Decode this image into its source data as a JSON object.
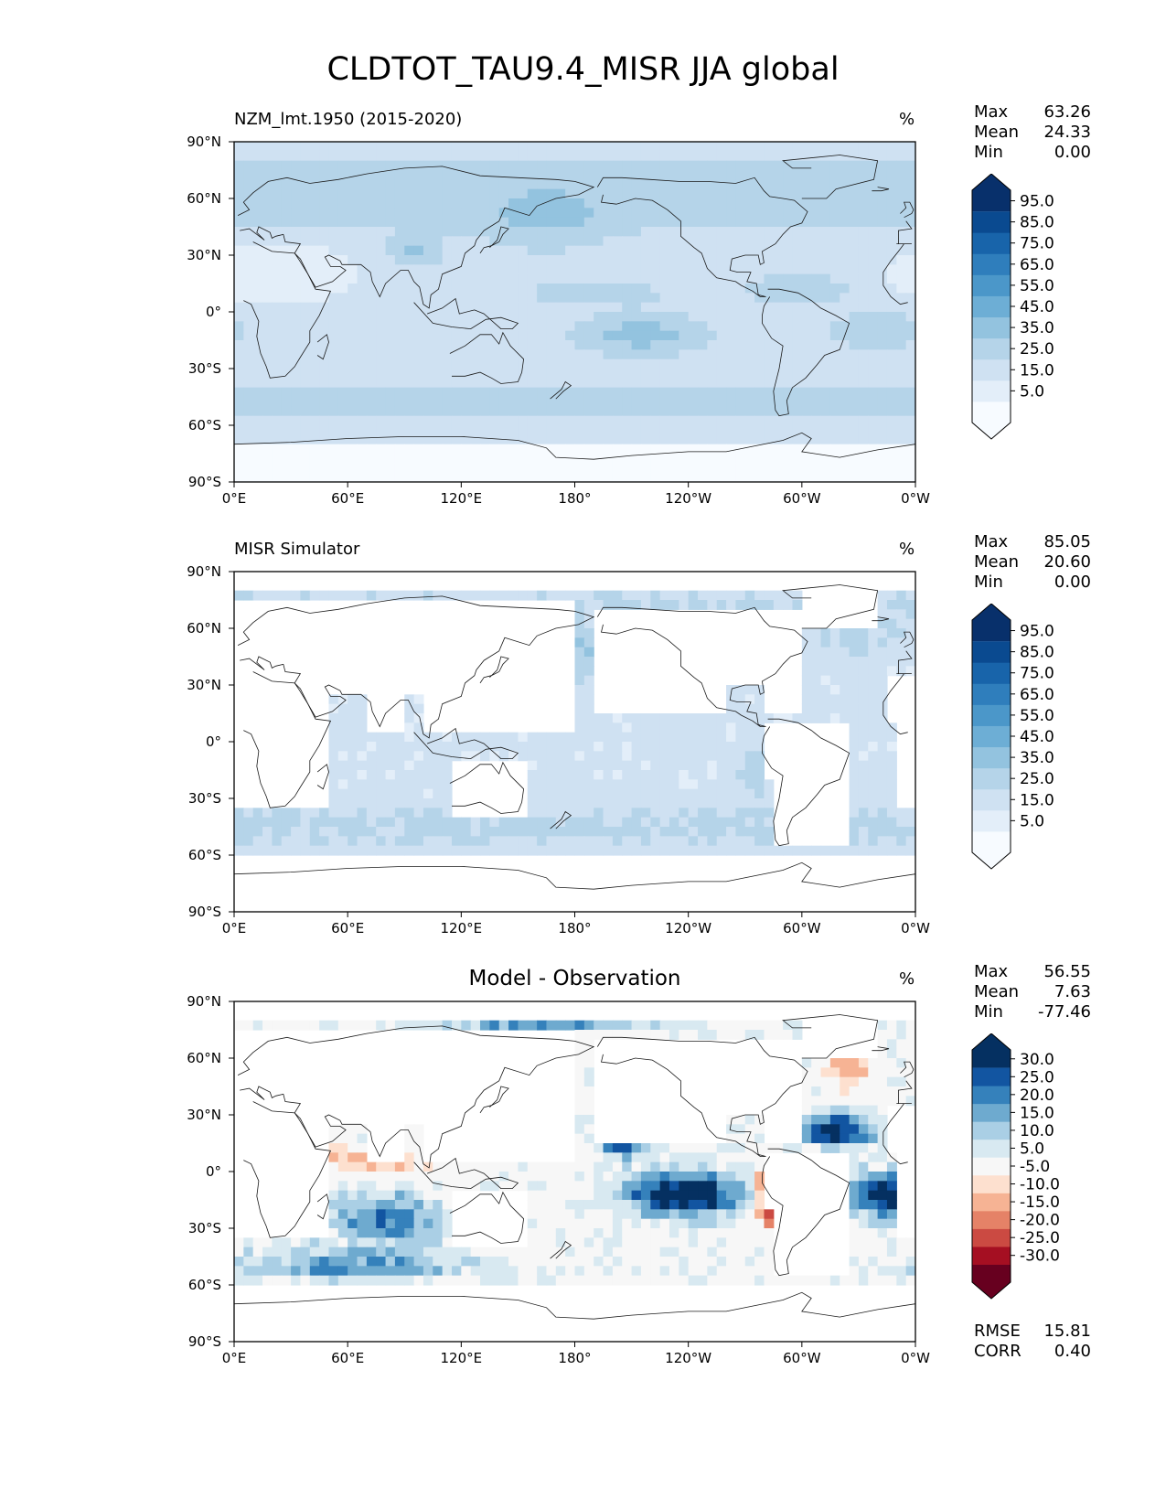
{
  "title": "CLDTOT_TAU9.4_MISR JJA global",
  "colors": {
    "blues": [
      "#f7fbff",
      "#e3eef9",
      "#cfe1f2",
      "#b5d4e9",
      "#93c3df",
      "#6daed5",
      "#4b97c9",
      "#2f7ebc",
      "#1864aa",
      "#0a4a90",
      "#08306b"
    ],
    "diverging": [
      "#67001f",
      "#a50f22",
      "#cb4a42",
      "#e58267",
      "#f6b394",
      "#fde0cf",
      "#f7f7f7",
      "#d8e9f1",
      "#aacfe5",
      "#6eaacf",
      "#3581bb",
      "#1255a1",
      "#053061"
    ]
  },
  "chart_data": [
    {
      "type": "heatmap",
      "title": "NZM_lmt.1950 (2015-2020)",
      "units": "%",
      "stats": [
        {
          "label": "Max",
          "value": "63.26"
        },
        {
          "label": "Mean",
          "value": "24.33"
        },
        {
          "label": "Min",
          "value": "0.00"
        }
      ],
      "x_ticks": [
        "0°E",
        "60°E",
        "120°E",
        "180°",
        "120°W",
        "60°W",
        "0°W"
      ],
      "y_ticks": [
        "90°N",
        "60°N",
        "30°N",
        "0°",
        "30°S",
        "60°S",
        "90°S"
      ],
      "colorbar_ticks": [
        "95.0",
        "85.0",
        "75.0",
        "65.0",
        "55.0",
        "45.0",
        "35.0",
        "25.0",
        "15.0",
        "5.0"
      ],
      "colorbar_levels": [
        0,
        5,
        15,
        25,
        35,
        45,
        55,
        65,
        75,
        85,
        95,
        100
      ]
    },
    {
      "type": "heatmap",
      "title": "MISR Simulator",
      "units": "%",
      "stats": [
        {
          "label": "Max",
          "value": "85.05"
        },
        {
          "label": "Mean",
          "value": "20.60"
        },
        {
          "label": "Min",
          "value": "0.00"
        }
      ],
      "x_ticks": [
        "0°E",
        "60°E",
        "120°E",
        "180°",
        "120°W",
        "60°W",
        "0°W"
      ],
      "y_ticks": [
        "90°N",
        "60°N",
        "30°N",
        "0°",
        "30°S",
        "60°S",
        "90°S"
      ],
      "colorbar_ticks": [
        "95.0",
        "85.0",
        "75.0",
        "65.0",
        "55.0",
        "45.0",
        "35.0",
        "25.0",
        "15.0",
        "5.0"
      ],
      "colorbar_levels": [
        0,
        5,
        15,
        25,
        35,
        45,
        55,
        65,
        75,
        85,
        95,
        100
      ]
    },
    {
      "type": "heatmap",
      "title": "Model - Observation",
      "units": "%",
      "stats": [
        {
          "label": "Max",
          "value": "56.55"
        },
        {
          "label": "Mean",
          "value": "7.63"
        },
        {
          "label": "Min",
          "value": "-77.46"
        }
      ],
      "extra_stats": [
        {
          "label": "RMSE",
          "value": "15.81"
        },
        {
          "label": "CORR",
          "value": "0.40"
        }
      ],
      "x_ticks": [
        "0°E",
        "60°E",
        "120°E",
        "180°",
        "120°W",
        "60°W",
        "0°W"
      ],
      "y_ticks": [
        "90°N",
        "60°N",
        "30°N",
        "0°",
        "30°S",
        "60°S",
        "90°S"
      ],
      "colorbar_ticks": [
        "30.0",
        "25.0",
        "20.0",
        "15.0",
        "10.0",
        "5.0",
        "-5.0",
        "-10.0",
        "-15.0",
        "-20.0",
        "-25.0",
        "-30.0"
      ],
      "colorbar_levels": [
        -35,
        -30,
        -25,
        -20,
        -15,
        -10,
        -5,
        5,
        10,
        15,
        20,
        25,
        30,
        35
      ]
    }
  ]
}
